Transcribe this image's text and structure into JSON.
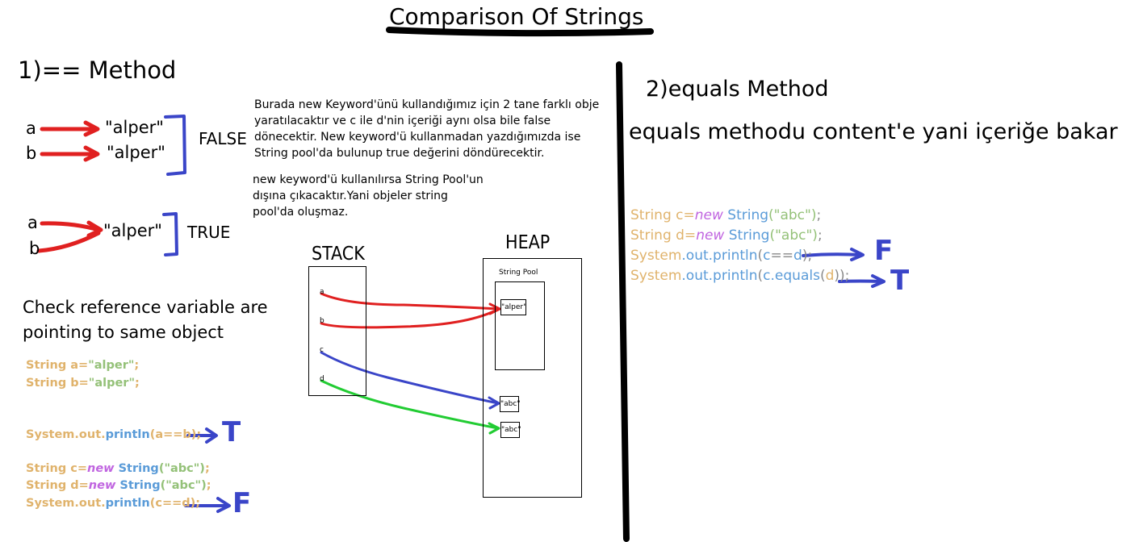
{
  "title": "Comparison Of Strings",
  "left": {
    "heading": "1)== Method",
    "case1": {
      "var_a": "a",
      "var_b": "b",
      "value_a": "\"alper\"",
      "value_b": "\"alper\"",
      "result": "FALSE"
    },
    "case2": {
      "var_a": "a",
      "var_b": "b",
      "value": "\"alper\"",
      "result": "TRUE"
    },
    "check_text": "Check reference variable are pointing to same object",
    "code1": {
      "line1": {
        "kw": "String",
        "rest": " a=",
        "lit": "\"alper\"",
        "end": ";"
      },
      "line2": {
        "kw": "String",
        "rest": " b=",
        "lit": "\"alper\"",
        "end": ";"
      },
      "println": {
        "sys": "System",
        "dot1": ".",
        "out": "out",
        "dot2": ".",
        "fn": "println",
        "arg": "(a==b);"
      },
      "mark": "T"
    },
    "code2": {
      "line1": {
        "kw": "String",
        "rest": " c=",
        "new": "new",
        "cls": " String",
        "lit": "(\"abc\")",
        "end": ";"
      },
      "line2": {
        "kw": "String",
        "rest": " d=",
        "new": "new",
        "cls": " String",
        "lit": "(\"abc\")",
        "end": ";"
      },
      "println": {
        "sys": "System",
        "dot1": ".",
        "out": "out",
        "dot2": ".",
        "fn": "println",
        "arg": "(c==d);"
      },
      "mark": "F"
    }
  },
  "notes": {
    "p1": "Burada new Keyword'ünü kullandığımız için 2 tane farklı obje yaratılacaktır ve c ile d'nin içeriği aynı olsa bile false dönecektir. New keyword'ü kullanmadan yazdığımızda ise String pool'da bulunup true değerini döndürecektir.",
    "p2": "new keyword'ü kullanılırsa String Pool'un dışına çıkacaktır.Yani objeler string pool'da oluşmaz."
  },
  "memory": {
    "stack_label": "STACK",
    "heap_label": "HEAP",
    "pool_label": "String Pool",
    "vars": [
      "a",
      "b",
      "c",
      "d"
    ],
    "pool_obj": "\"alper\"",
    "heap_obj1": "\"abc\"",
    "heap_obj2": "\"abc\""
  },
  "right": {
    "heading": "2)equals Method",
    "desc": "equals methodu content'e yani içeriğe bakar",
    "code": {
      "line1": {
        "kw": "String",
        "rest": " c=",
        "new": "new",
        "cls": " String",
        "lit": "(\"abc\")",
        "end": ";"
      },
      "line2": {
        "kw": "String",
        "rest": " d=",
        "new": "new",
        "cls": " String",
        "lit": "(\"abc\")",
        "end": ";"
      },
      "line3": {
        "sys": "System",
        "out": ".out",
        "fn": ".println",
        "open": "(",
        "a1": "c",
        "op": "==",
        "a2": "d",
        "close": ");"
      },
      "line4": {
        "sys": "System",
        "out": ".out",
        "fn": ".println",
        "open": "(",
        "a1": "c",
        "m": ".equals",
        "p1": "(",
        "a2": "d",
        "close": "));"
      },
      "mark1": "F",
      "mark2": "T"
    }
  },
  "colors": {
    "red_arrow": "#e02020",
    "blue_arrow": "#3a45c8",
    "green_arrow": "#22cc33"
  }
}
